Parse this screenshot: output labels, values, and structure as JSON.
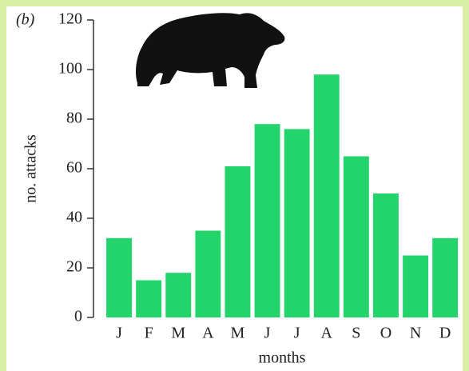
{
  "chart_data": {
    "type": "bar",
    "panel_label": "(b)",
    "x_label": "months",
    "y_label": "no. attacks",
    "categories": [
      "J",
      "F",
      "M",
      "A",
      "M",
      "J",
      "J",
      "A",
      "S",
      "O",
      "N",
      "D"
    ],
    "values": [
      32,
      15,
      18,
      35,
      61,
      78,
      76,
      98,
      65,
      50,
      25,
      32
    ],
    "color": "#22d46a",
    "ylim": [
      0,
      120
    ],
    "yticks": [
      0,
      20,
      40,
      60,
      80,
      100,
      120
    ],
    "grid": false
  }
}
